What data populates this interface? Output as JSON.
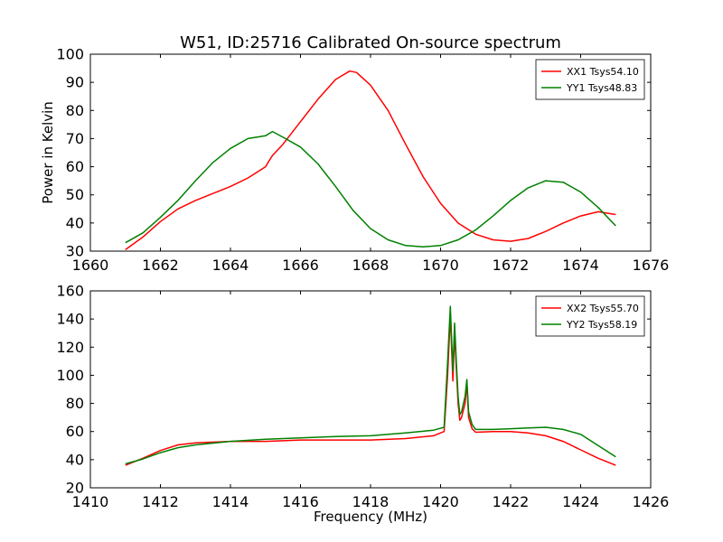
{
  "figure": {
    "title": "W51, ID:25716 Calibrated On-source spectrum"
  },
  "chart_data": [
    {
      "type": "line",
      "title": "W51, ID:25716 Calibrated On-source spectrum",
      "xlabel": "",
      "ylabel": "Power in Kelvin",
      "xlim": [
        1660,
        1676
      ],
      "ylim": [
        30,
        100
      ],
      "xticks": [
        "1660",
        "1662",
        "1664",
        "1666",
        "1668",
        "1670",
        "1672",
        "1674",
        "1676"
      ],
      "yticks": [
        "30",
        "40",
        "50",
        "60",
        "70",
        "80",
        "90",
        "100"
      ],
      "legend_position": "top-right",
      "series": [
        {
          "name": "XX1 Tsys54.10",
          "color": "#ff0000",
          "x": [
            1661.0,
            1661.5,
            1662.0,
            1662.5,
            1663.0,
            1663.5,
            1664.0,
            1664.5,
            1665.0,
            1665.1,
            1665.2,
            1665.5,
            1666.0,
            1666.5,
            1667.0,
            1667.2,
            1667.4,
            1667.6,
            1668.0,
            1668.5,
            1669.0,
            1669.5,
            1670.0,
            1670.5,
            1671.0,
            1671.5,
            1672.0,
            1672.5,
            1673.0,
            1673.5,
            1674.0,
            1674.5,
            1675.0
          ],
          "y": [
            30.5,
            35.0,
            40.5,
            45.0,
            48.0,
            50.5,
            53.0,
            56.0,
            60.0,
            62.0,
            64.0,
            68.0,
            76.0,
            84.0,
            91.0,
            92.5,
            94.0,
            93.5,
            89.0,
            80.0,
            68.0,
            56.5,
            47.0,
            40.0,
            36.0,
            34.0,
            33.5,
            34.5,
            37.0,
            40.0,
            42.5,
            44.0,
            43.0
          ]
        },
        {
          "name": "YY1 Tsys48.83",
          "color": "#008000",
          "x": [
            1661.0,
            1661.5,
            1662.0,
            1662.5,
            1663.0,
            1663.5,
            1664.0,
            1664.5,
            1665.0,
            1665.2,
            1665.5,
            1666.0,
            1666.5,
            1667.0,
            1667.5,
            1668.0,
            1668.5,
            1669.0,
            1669.5,
            1670.0,
            1670.5,
            1671.0,
            1671.5,
            1672.0,
            1672.5,
            1673.0,
            1673.5,
            1674.0,
            1674.5,
            1675.0
          ],
          "y": [
            33.0,
            36.5,
            42.0,
            48.0,
            55.0,
            61.5,
            66.5,
            70.0,
            71.0,
            72.5,
            70.5,
            67.0,
            61.0,
            53.0,
            44.5,
            38.0,
            34.0,
            32.0,
            31.5,
            32.0,
            34.0,
            37.5,
            42.5,
            48.0,
            52.5,
            55.0,
            54.5,
            51.0,
            45.5,
            39.0
          ]
        }
      ]
    },
    {
      "type": "line",
      "title": "",
      "xlabel": "Frequency (MHz)",
      "ylabel": "",
      "xlim": [
        1410,
        1426
      ],
      "ylim": [
        20,
        160
      ],
      "xticks": [
        "1410",
        "1412",
        "1414",
        "1416",
        "1418",
        "1420",
        "1422",
        "1424",
        "1426"
      ],
      "yticks": [
        "20",
        "40",
        "60",
        "80",
        "100",
        "120",
        "140",
        "160"
      ],
      "legend_position": "top-right",
      "series": [
        {
          "name": "XX2 Tsys55.70",
          "color": "#ff0000",
          "x": [
            1411.0,
            1411.5,
            1412.0,
            1412.5,
            1413.0,
            1414.0,
            1415.0,
            1416.0,
            1417.0,
            1418.0,
            1419.0,
            1419.8,
            1420.1,
            1420.2,
            1420.28,
            1420.35,
            1420.4,
            1420.45,
            1420.5,
            1420.55,
            1420.6,
            1420.7,
            1420.75,
            1420.8,
            1420.9,
            1421.0,
            1421.5,
            1422.0,
            1422.5,
            1423.0,
            1423.5,
            1424.0,
            1424.5,
            1425.0
          ],
          "y": [
            36.0,
            41.0,
            46.5,
            50.5,
            52.0,
            53.0,
            53.0,
            54.0,
            54.0,
            54.0,
            55.0,
            57.0,
            60.0,
            100.0,
            143.0,
            96.0,
            130.0,
            105.0,
            80.0,
            68.0,
            70.0,
            80.0,
            94.0,
            70.0,
            62.0,
            59.5,
            60.0,
            60.0,
            59.0,
            57.0,
            53.0,
            47.0,
            41.0,
            36.0
          ]
        },
        {
          "name": "YY2 Tsys58.19",
          "color": "#008000",
          "x": [
            1411.0,
            1411.5,
            1412.0,
            1412.5,
            1413.0,
            1414.0,
            1415.0,
            1416.0,
            1417.0,
            1418.0,
            1419.0,
            1419.8,
            1420.1,
            1420.2,
            1420.28,
            1420.35,
            1420.4,
            1420.45,
            1420.5,
            1420.55,
            1420.6,
            1420.7,
            1420.75,
            1420.8,
            1420.9,
            1421.0,
            1421.5,
            1422.0,
            1422.5,
            1423.0,
            1423.5,
            1424.0,
            1424.5,
            1425.0
          ],
          "y": [
            37.0,
            40.5,
            45.0,
            48.5,
            50.5,
            53.0,
            54.5,
            55.5,
            56.5,
            57.0,
            59.0,
            61.0,
            63.0,
            110.0,
            149.0,
            103.0,
            137.0,
            110.0,
            85.0,
            72.0,
            74.0,
            85.0,
            97.0,
            74.0,
            65.0,
            61.5,
            61.5,
            62.0,
            62.5,
            63.0,
            61.5,
            58.0,
            50.0,
            42.0
          ]
        }
      ]
    }
  ]
}
